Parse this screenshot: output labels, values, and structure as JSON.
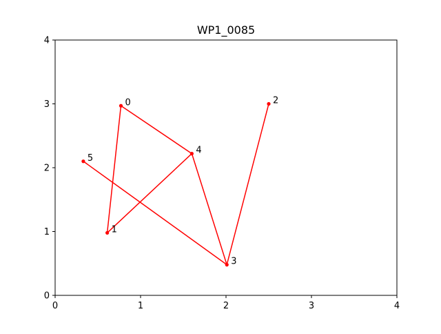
{
  "chart_data": {
    "type": "line",
    "title": "WP1_0085",
    "xlabel": "",
    "ylabel": "",
    "xlim": [
      0,
      4
    ],
    "ylim": [
      0,
      4
    ],
    "xticks": [
      "0",
      "1",
      "2",
      "3",
      "4"
    ],
    "yticks": [
      "0",
      "1",
      "2",
      "3",
      "4"
    ],
    "grid": false,
    "series": [
      {
        "color": "#ff0000",
        "points": [
          {
            "label": "0",
            "x": 0.77,
            "y": 2.97
          },
          {
            "label": "1",
            "x": 0.61,
            "y": 0.98
          },
          {
            "label": "4",
            "x": 1.6,
            "y": 2.22
          },
          {
            "label": "2",
            "x": 2.5,
            "y": 3.0
          },
          {
            "label": "3",
            "x": 2.01,
            "y": 0.48
          },
          {
            "label": "5",
            "x": 0.33,
            "y": 2.1
          }
        ],
        "path_order": [
          "2",
          "3",
          "4",
          "0",
          "1",
          "4"
        ],
        "extra_segments": [
          [
            "3",
            "5"
          ]
        ]
      }
    ]
  }
}
